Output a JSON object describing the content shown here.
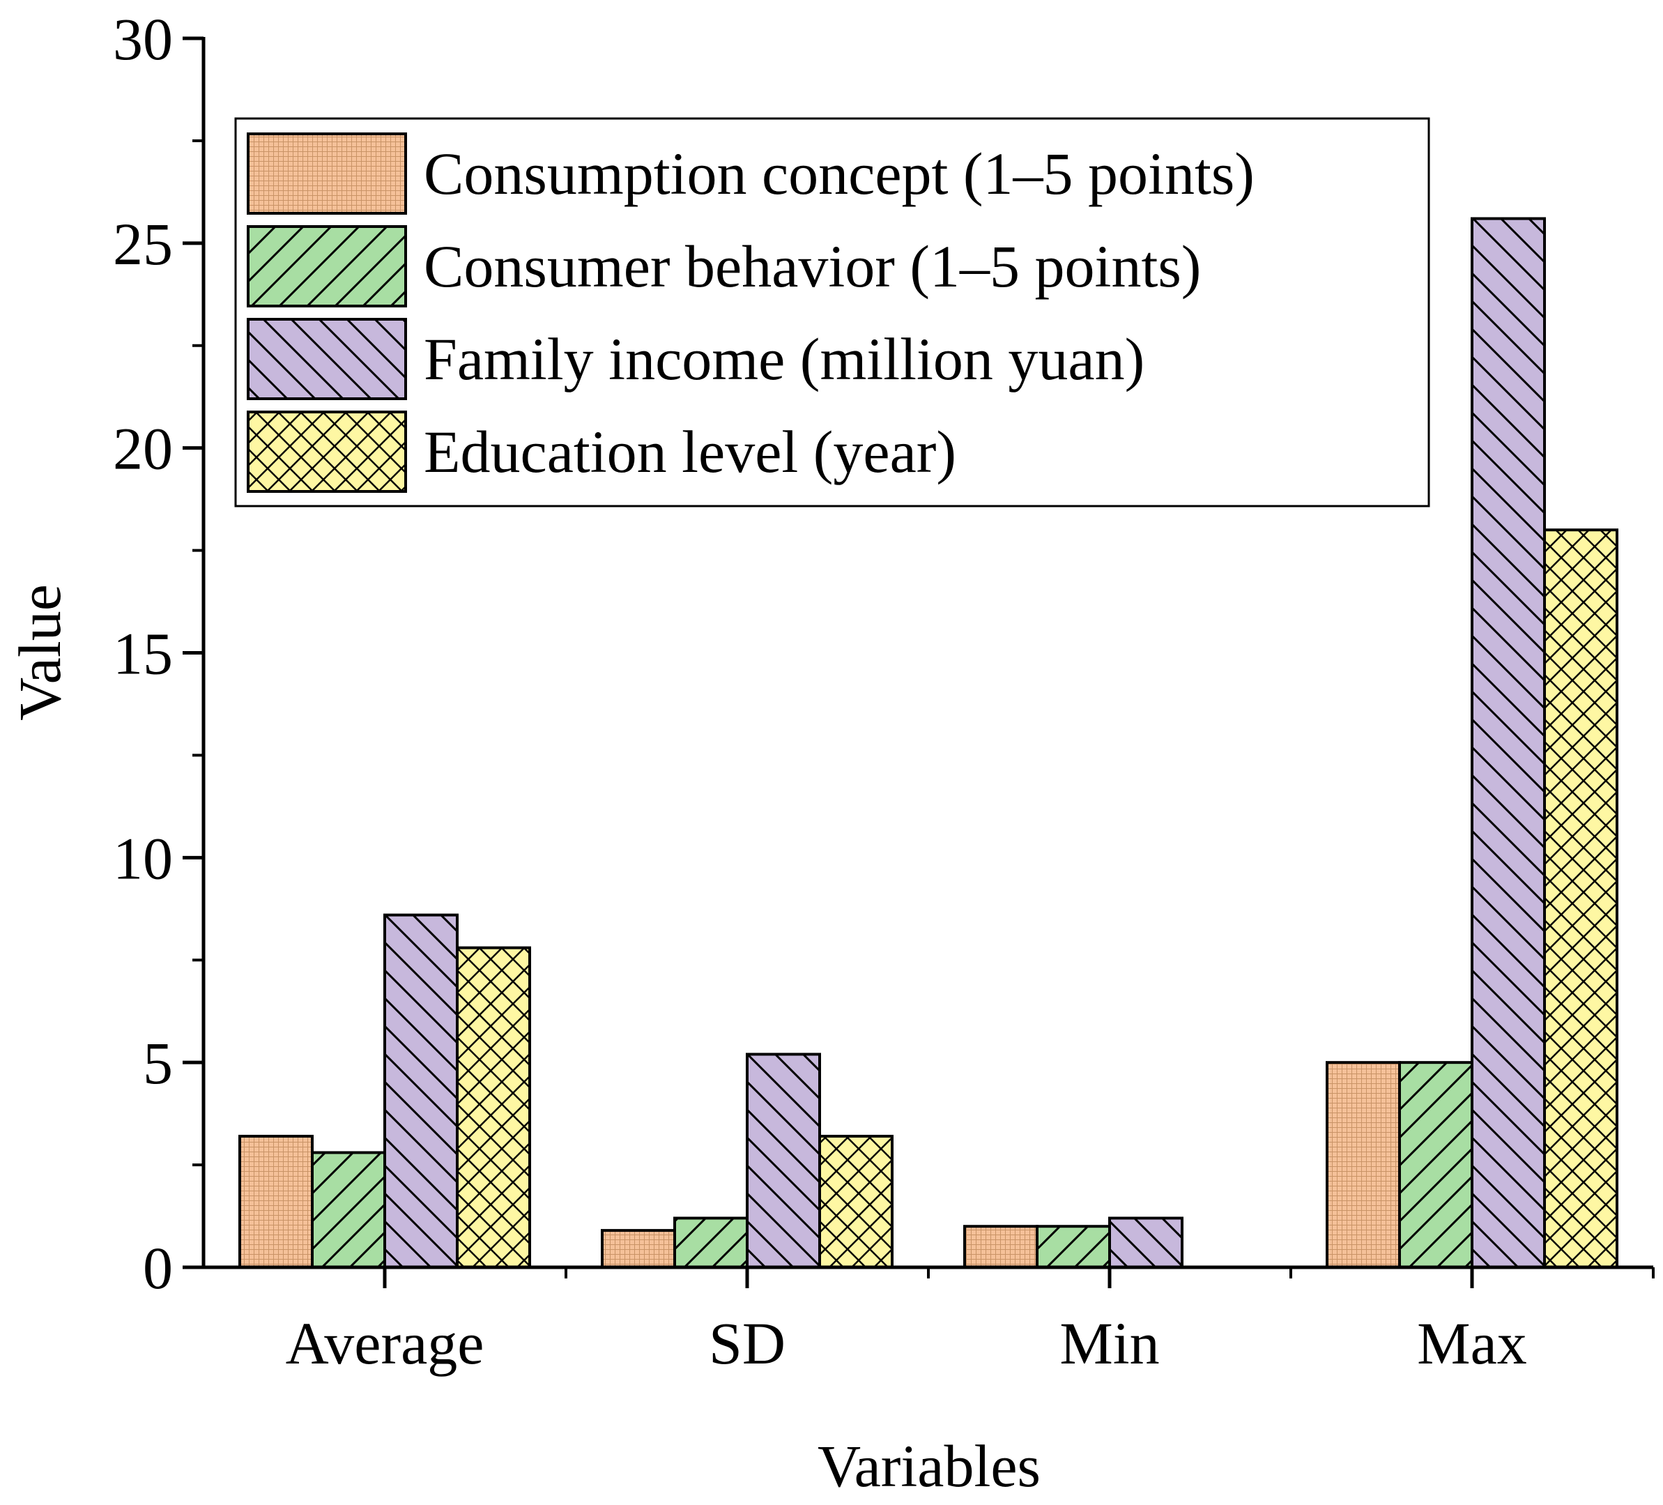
{
  "chart_data": {
    "type": "bar",
    "title": "",
    "xlabel": "Variables",
    "ylabel": "Value",
    "ylim": [
      0,
      30
    ],
    "y_major_ticks": [
      0,
      5,
      10,
      15,
      20,
      25,
      30
    ],
    "y_tick_labels": [
      "0",
      "5",
      "10",
      "15",
      "20",
      "25",
      "30"
    ],
    "categories": [
      "Average",
      "SD",
      "Min",
      "Max"
    ],
    "legend_position": "top-left",
    "series": [
      {
        "name": "Consumption concept (1–5 points)",
        "color": "#f5c199",
        "pattern": "fine-grid",
        "values": [
          3.2,
          0.9,
          1.0,
          5.0
        ]
      },
      {
        "name": "Consumer behavior (1–5 points)",
        "color": "#a8dea3",
        "pattern": "forward-diagonal",
        "values": [
          2.8,
          1.2,
          1.0,
          5.0
        ]
      },
      {
        "name": "Family income (million yuan)",
        "color": "#c7b8dc",
        "pattern": "backward-diagonal",
        "values": [
          8.6,
          5.2,
          1.2,
          25.6
        ]
      },
      {
        "name": "Education level (year)",
        "color": "#fef7a3",
        "pattern": "cross-hatch",
        "values": [
          7.8,
          3.2,
          null,
          18.0
        ]
      }
    ]
  }
}
